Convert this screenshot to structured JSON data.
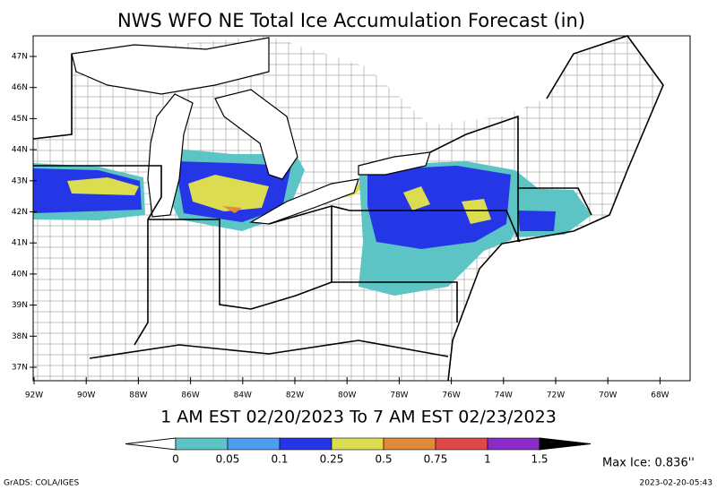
{
  "title": "NWS WFO NE Total Ice Accumulation Forecast (in)",
  "map": {
    "lat_labels": [
      "47N",
      "46N",
      "45N",
      "44N",
      "43N",
      "42N",
      "41N",
      "40N",
      "39N",
      "38N",
      "37N"
    ],
    "lon_labels": [
      "92W",
      "90W",
      "88W",
      "86W",
      "84W",
      "82W",
      "80W",
      "78W",
      "76W",
      "74W",
      "72W",
      "70W",
      "68W"
    ]
  },
  "valid_period": "1 AM EST 02/20/2023 To 7 AM EST 02/23/2023",
  "colorbar": {
    "levels": [
      0,
      0.05,
      0.1,
      0.25,
      0.5,
      0.75,
      1,
      1.5
    ],
    "colors": [
      "#ffffff",
      "#5cc4c4",
      "#4c9cf0",
      "#2436e6",
      "#dcdc50",
      "#e08a3a",
      "#e04848",
      "#8c2cc8",
      "#000000"
    ]
  },
  "max_ice": "Max Ice: 0.836''",
  "credit": "GrADS: COLA/IGES",
  "timestamp": "2023-02-20-05:43"
}
